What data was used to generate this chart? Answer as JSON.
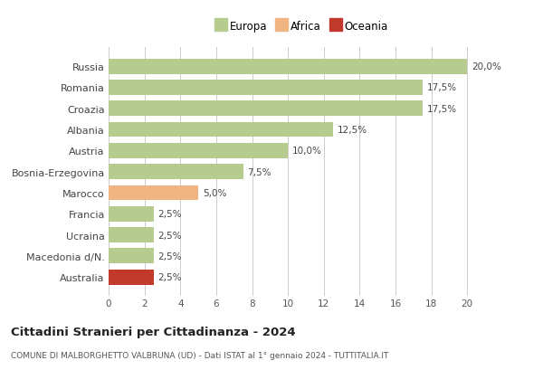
{
  "categories": [
    "Russia",
    "Romania",
    "Croazia",
    "Albania",
    "Austria",
    "Bosnia-Erzegovina",
    "Marocco",
    "Francia",
    "Ucraina",
    "Macedonia d/N.",
    "Australia"
  ],
  "values": [
    20.0,
    17.5,
    17.5,
    12.5,
    10.0,
    7.5,
    5.0,
    2.5,
    2.5,
    2.5,
    2.5
  ],
  "colors": [
    "#b5cc8e",
    "#b5cc8e",
    "#b5cc8e",
    "#b5cc8e",
    "#b5cc8e",
    "#b5cc8e",
    "#f0b482",
    "#b5cc8e",
    "#b5cc8e",
    "#b5cc8e",
    "#c0392b"
  ],
  "labels": [
    "20,0%",
    "17,5%",
    "17,5%",
    "12,5%",
    "10,0%",
    "7,5%",
    "5,0%",
    "2,5%",
    "2,5%",
    "2,5%",
    "2,5%"
  ],
  "legend": [
    {
      "label": "Europa",
      "color": "#b5cc8e"
    },
    {
      "label": "Africa",
      "color": "#f0b482"
    },
    {
      "label": "Oceania",
      "color": "#c0392b"
    }
  ],
  "title": "Cittadini Stranieri per Cittadinanza - 2024",
  "subtitle": "COMUNE DI MALBORGHETTO VALBRUNA (UD) - Dati ISTAT al 1° gennaio 2024 - TUTTITALIA.IT",
  "xlim": [
    0,
    21.5
  ],
  "xticks": [
    0,
    2,
    4,
    6,
    8,
    10,
    12,
    14,
    16,
    18,
    20
  ],
  "background_color": "#ffffff",
  "grid_color": "#cccccc",
  "bar_height": 0.72
}
